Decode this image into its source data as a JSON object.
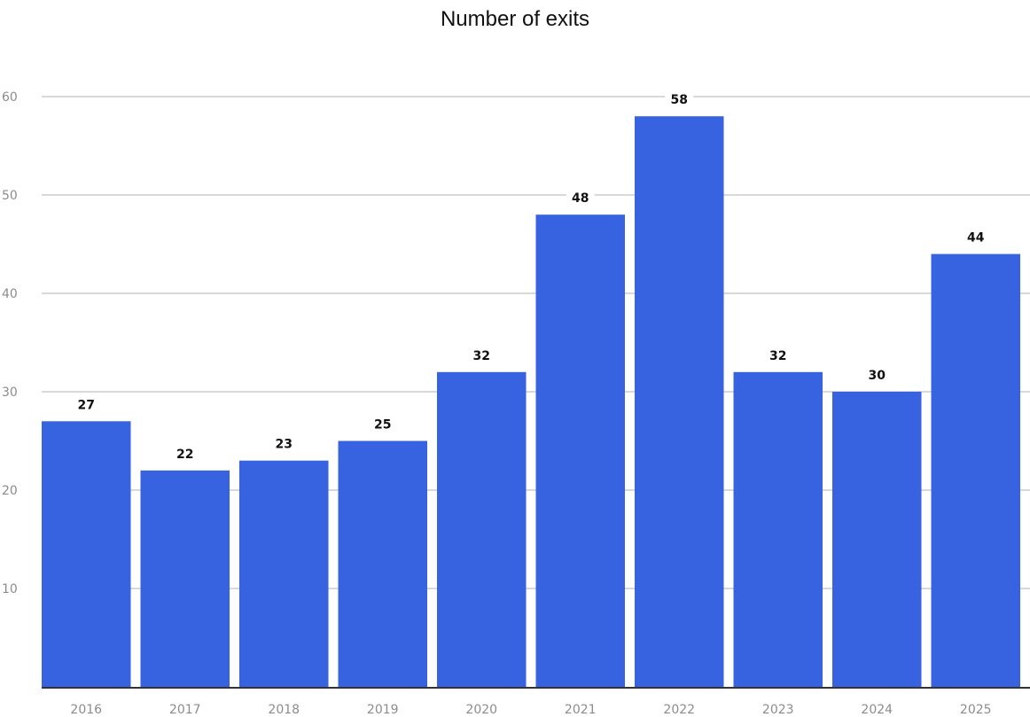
{
  "chart_data": {
    "type": "bar",
    "title": "Number of exits",
    "xlabel": "",
    "ylabel": "",
    "categories": [
      "2016",
      "2017",
      "2018",
      "2019",
      "2020",
      "2021",
      "2022",
      "2023",
      "2024",
      "2025"
    ],
    "values": [
      27,
      22,
      23,
      25,
      32,
      48,
      58,
      32,
      30,
      44
    ],
    "ylim": [
      0,
      60
    ],
    "yticks": [
      10,
      20,
      30,
      40,
      50,
      60
    ],
    "grid": true,
    "legend": "none",
    "colors": {
      "bar": "#3762e0",
      "grid": "#cccccc",
      "axis": "#333333",
      "tick_label": "#8c8c8c",
      "data_label": "#111111",
      "label_bg": "#ffffff"
    }
  }
}
